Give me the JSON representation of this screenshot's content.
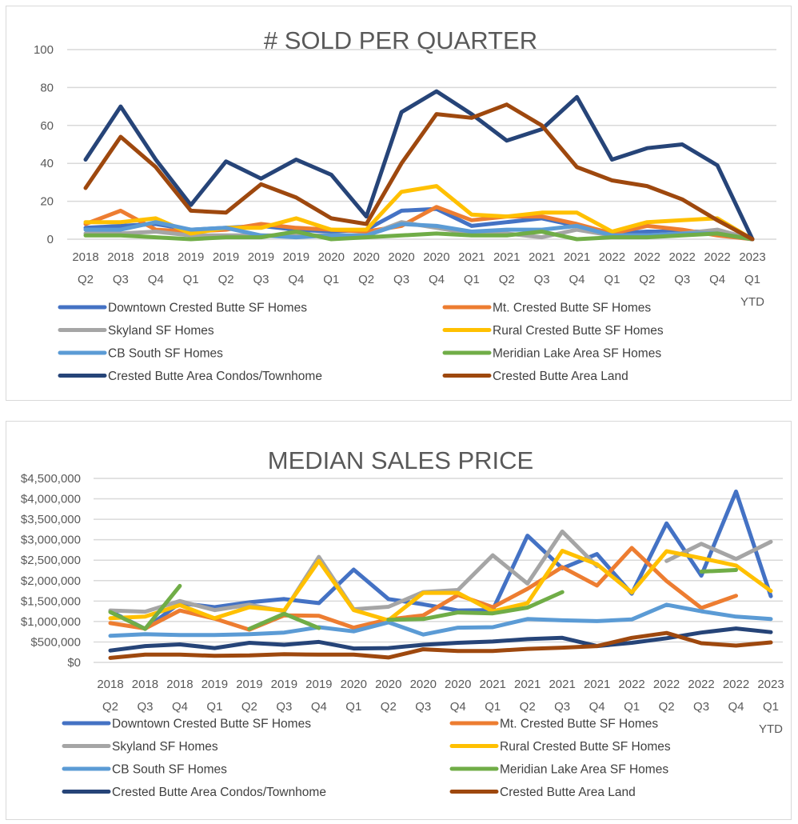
{
  "chart_data": [
    {
      "type": "line",
      "title": "# SOLD PER QUARTER",
      "xlabel": "",
      "ylabel": "",
      "ylim": [
        0,
        100
      ],
      "yticks": [
        "0",
        "20",
        "40",
        "60",
        "80",
        "100"
      ],
      "ytick_values": [
        0,
        20,
        40,
        60,
        80,
        100
      ],
      "grid": true,
      "legend_position": "bottom",
      "categories": [
        [
          "2018",
          "Q2"
        ],
        [
          "2018",
          "Q3"
        ],
        [
          "2018",
          "Q4"
        ],
        [
          "2019",
          "Q1"
        ],
        [
          "2019",
          "Q2"
        ],
        [
          "2019",
          "Q3"
        ],
        [
          "2019",
          "Q4"
        ],
        [
          "2020",
          "Q1"
        ],
        [
          "2020",
          "Q2"
        ],
        [
          "2020",
          "Q3"
        ],
        [
          "2020",
          "Q4"
        ],
        [
          "2021",
          "Q1"
        ],
        [
          "2021",
          "Q2"
        ],
        [
          "2021",
          "Q3"
        ],
        [
          "2021",
          "Q4"
        ],
        [
          "2022",
          "Q1"
        ],
        [
          "2022",
          "Q2"
        ],
        [
          "2022",
          "Q3"
        ],
        [
          "2022",
          "Q4"
        ],
        [
          "2023",
          "Q1",
          "YTD"
        ]
      ],
      "series": [
        {
          "name": "Downtown Crested Butte SF Homes",
          "color": "#4472C4",
          "values": [
            6,
            7,
            8,
            5,
            6,
            7,
            5,
            4,
            5,
            15,
            16,
            7,
            9,
            11,
            7,
            3,
            4,
            4,
            4,
            0
          ]
        },
        {
          "name": "Mt. Crested Butte SF Homes",
          "color": "#ED7D31",
          "values": [
            8,
            15,
            5,
            4,
            5,
            8,
            6,
            5,
            4,
            7,
            17,
            10,
            12,
            12,
            8,
            3,
            7,
            5,
            2,
            0
          ]
        },
        {
          "name": "Skyland SF Homes",
          "color": "#A5A5A5",
          "values": [
            3,
            3,
            4,
            2,
            2,
            2,
            2,
            2,
            2,
            9,
            6,
            3,
            3,
            1,
            5,
            2,
            2,
            3,
            5,
            0
          ]
        },
        {
          "name": "Rural Crested Butte SF Homes",
          "color": "#FFC000",
          "values": [
            9,
            9,
            11,
            3,
            6,
            6,
            11,
            5,
            5,
            25,
            28,
            13,
            12,
            14,
            14,
            4,
            9,
            10,
            11,
            0
          ]
        },
        {
          "name": "CB South SF Homes",
          "color": "#5B9BD5",
          "values": [
            5,
            5,
            9,
            5,
            6,
            2,
            1,
            2,
            2,
            8,
            7,
            4,
            5,
            5,
            7,
            2,
            2,
            3,
            3,
            0
          ]
        },
        {
          "name": "Meridian Lake Area SF Homes",
          "color": "#70AD47",
          "values": [
            2,
            2,
            1,
            0,
            1,
            1,
            4,
            0,
            1,
            2,
            3,
            2,
            2,
            4,
            0,
            1,
            1,
            2,
            3,
            0
          ]
        },
        {
          "name": "Crested Butte Area Condos/Townhome",
          "color": "#264478",
          "values": [
            42,
            70,
            42,
            18,
            41,
            32,
            42,
            34,
            12,
            67,
            78,
            66,
            52,
            58,
            75,
            42,
            48,
            50,
            39,
            0
          ]
        },
        {
          "name": "Crested Butte Area Land",
          "color": "#9E480E",
          "values": [
            27,
            54,
            38,
            15,
            14,
            29,
            22,
            11,
            8,
            40,
            66,
            64,
            71,
            60,
            38,
            31,
            28,
            21,
            10,
            0
          ]
        }
      ]
    },
    {
      "type": "line",
      "title": "MEDIAN SALES PRICE",
      "xlabel": "",
      "ylabel": "",
      "ylim": [
        0,
        4500000
      ],
      "yticks": [
        "$0",
        "$500,000",
        "$1,000,000",
        "$1,500,000",
        "$2,000,000",
        "$2,500,000",
        "$3,000,000",
        "$3,500,000",
        "$4,000,000",
        "$4,500,000"
      ],
      "ytick_values": [
        0,
        500000,
        1000000,
        1500000,
        2000000,
        2500000,
        3000000,
        3500000,
        4000000,
        4500000
      ],
      "grid": true,
      "legend_position": "bottom",
      "categories": [
        [
          "2018",
          "Q2"
        ],
        [
          "2018",
          "Q3"
        ],
        [
          "2018",
          "Q4"
        ],
        [
          "2019",
          "Q1"
        ],
        [
          "2019",
          "Q2"
        ],
        [
          "2019",
          "Q3"
        ],
        [
          "2019",
          "Q4"
        ],
        [
          "2020",
          "Q1"
        ],
        [
          "2020",
          "Q2"
        ],
        [
          "2020",
          "Q3"
        ],
        [
          "2020",
          "Q4"
        ],
        [
          "2021",
          "Q1"
        ],
        [
          "2021",
          "Q2"
        ],
        [
          "2021",
          "Q3"
        ],
        [
          "2021",
          "Q4"
        ],
        [
          "2022",
          "Q1"
        ],
        [
          "2022",
          "Q2"
        ],
        [
          "2022",
          "Q3"
        ],
        [
          "2022",
          "Q4"
        ],
        [
          "2023",
          "Q1",
          "YTD"
        ]
      ],
      "series": [
        {
          "name": "Downtown Crested Butte SF Homes",
          "color": "#4472C4",
          "values": [
            1250000,
            820000,
            1450000,
            1350000,
            1470000,
            1550000,
            1450000,
            2270000,
            1550000,
            1420000,
            1270000,
            1280000,
            3100000,
            2300000,
            2650000,
            1680000,
            3400000,
            2120000,
            4180000,
            1620000
          ]
        },
        {
          "name": "Mt. Crested Butte SF Homes",
          "color": "#ED7D31",
          "values": [
            960000,
            830000,
            1270000,
            1070000,
            800000,
            1150000,
            1140000,
            850000,
            1050000,
            1150000,
            1650000,
            1350000,
            1800000,
            2330000,
            1880000,
            2800000,
            1990000,
            1330000,
            1630000,
            null
          ]
        },
        {
          "name": "Skyland SF Homes",
          "color": "#A5A5A5",
          "values": [
            1270000,
            1240000,
            1500000,
            1280000,
            1410000,
            1250000,
            2580000,
            1300000,
            1360000,
            1720000,
            1770000,
            2620000,
            1930000,
            3200000,
            2350000,
            null,
            2480000,
            2900000,
            2530000,
            2950000
          ]
        },
        {
          "name": "Rural Crested Butte SF Homes",
          "color": "#FFC000",
          "values": [
            1080000,
            1120000,
            1400000,
            1080000,
            1350000,
            1270000,
            2480000,
            1280000,
            1030000,
            1700000,
            1700000,
            1250000,
            1450000,
            2730000,
            2400000,
            1710000,
            2720000,
            2550000,
            2370000,
            1750000
          ]
        },
        {
          "name": "CB South SF Homes",
          "color": "#5B9BD5",
          "values": [
            650000,
            690000,
            670000,
            670000,
            690000,
            730000,
            860000,
            760000,
            980000,
            680000,
            850000,
            860000,
            1060000,
            1030000,
            1010000,
            1050000,
            1410000,
            1250000,
            1120000,
            1060000
          ]
        },
        {
          "name": "Meridian Lake Area SF Homes",
          "color": "#70AD47",
          "values": [
            1230000,
            820000,
            1870000,
            null,
            820000,
            1190000,
            840000,
            null,
            1040000,
            1060000,
            1220000,
            1200000,
            1340000,
            1720000,
            null,
            null,
            null,
            2220000,
            2260000,
            null
          ]
        },
        {
          "name": "Crested Butte Area Condos/Townhome",
          "color": "#264478",
          "values": [
            290000,
            400000,
            440000,
            350000,
            480000,
            430000,
            500000,
            340000,
            350000,
            430000,
            480000,
            510000,
            570000,
            600000,
            400000,
            480000,
            590000,
            730000,
            830000,
            740000
          ]
        },
        {
          "name": "Crested Butte Area Land",
          "color": "#9E480E",
          "values": [
            110000,
            190000,
            190000,
            160000,
            170000,
            200000,
            190000,
            190000,
            120000,
            320000,
            280000,
            280000,
            330000,
            360000,
            400000,
            600000,
            720000,
            470000,
            410000,
            490000
          ]
        }
      ]
    }
  ]
}
